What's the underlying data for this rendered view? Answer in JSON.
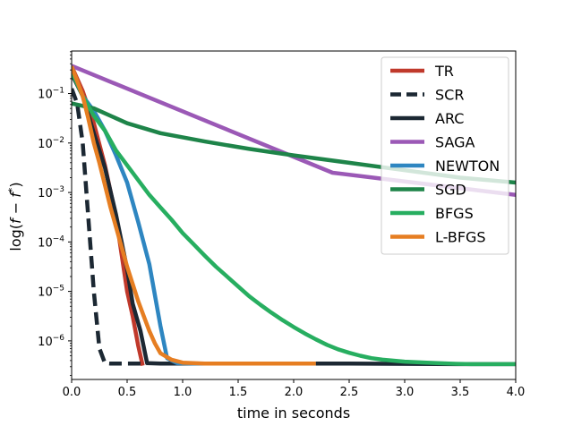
{
  "chart_data": {
    "type": "line",
    "title": "",
    "xlabel": "time in seconds",
    "ylabel_parts": [
      "log(",
      "f",
      " − ",
      "f",
      "*",
      ")"
    ],
    "xlim": [
      0,
      4
    ],
    "ylim_log10": [
      -6.78,
      -0.14
    ],
    "x_ticks": [
      0,
      0.5,
      1,
      1.5,
      2,
      2.5,
      3,
      3.5,
      4
    ],
    "x_tick_labels": [
      "0.0",
      "0.5",
      "1.0",
      "1.5",
      "2.0",
      "2.5",
      "3.0",
      "3.5",
      "4.0"
    ],
    "y_ticks_log10": [
      -6,
      -5,
      -4,
      -3,
      -2,
      -1
    ],
    "y_tick_base": "10",
    "y_tick_exponents": [
      "−6",
      "−5",
      "−4",
      "−3",
      "−2",
      "−1"
    ],
    "grid": false,
    "legend_position": "top-right",
    "series": [
      {
        "name": "TR",
        "color": "#c0392b",
        "dash": "solid",
        "points": [
          [
            0.0,
            -0.45
          ],
          [
            0.1,
            -0.95
          ],
          [
            0.2,
            -1.6
          ],
          [
            0.3,
            -2.45
          ],
          [
            0.4,
            -3.5
          ],
          [
            0.45,
            -4.25
          ],
          [
            0.5,
            -5.0
          ],
          [
            0.55,
            -5.5
          ],
          [
            0.6,
            -6.1
          ],
          [
            0.64,
            -6.5
          ]
        ]
      },
      {
        "name": "SCR",
        "color": "#1c2833",
        "dash": "dashed",
        "points": [
          [
            0.0,
            -0.9
          ],
          [
            0.05,
            -1.2
          ],
          [
            0.1,
            -2.0
          ],
          [
            0.15,
            -3.5
          ],
          [
            0.2,
            -5.0
          ],
          [
            0.25,
            -6.15
          ],
          [
            0.3,
            -6.45
          ],
          [
            0.35,
            -6.46
          ],
          [
            0.5,
            -6.46
          ],
          [
            0.65,
            -6.46
          ]
        ]
      },
      {
        "name": "ARC",
        "color": "#1c2833",
        "dash": "solid",
        "points": [
          [
            0.0,
            -0.6
          ],
          [
            0.1,
            -1.05
          ],
          [
            0.2,
            -1.8
          ],
          [
            0.3,
            -2.5
          ],
          [
            0.4,
            -3.45
          ],
          [
            0.5,
            -4.55
          ],
          [
            0.55,
            -5.25
          ],
          [
            0.62,
            -5.8
          ],
          [
            0.68,
            -6.45
          ],
          [
            0.8,
            -6.46
          ],
          [
            1.5,
            -6.46
          ],
          [
            2.5,
            -6.46
          ],
          [
            3.5,
            -6.47
          ],
          [
            4.0,
            -6.47
          ]
        ]
      },
      {
        "name": "SAGA",
        "color": "#9b59b6",
        "dash": "solid",
        "points": [
          [
            0.0,
            -0.44
          ],
          [
            2.35,
            -2.6
          ],
          [
            4.0,
            -3.05
          ]
        ]
      },
      {
        "name": "NEWTON",
        "color": "#2e86c1",
        "dash": "solid",
        "points": [
          [
            0.0,
            -0.5
          ],
          [
            0.1,
            -1.05
          ],
          [
            0.2,
            -1.35
          ],
          [
            0.3,
            -1.75
          ],
          [
            0.4,
            -2.25
          ],
          [
            0.5,
            -2.8
          ],
          [
            0.6,
            -3.6
          ],
          [
            0.7,
            -4.45
          ],
          [
            0.8,
            -5.7
          ],
          [
            0.86,
            -6.35
          ],
          [
            0.95,
            -6.45
          ],
          [
            1.1,
            -6.46
          ],
          [
            1.6,
            -6.46
          ],
          [
            2.2,
            -6.46
          ]
        ]
      },
      {
        "name": "SGD",
        "color": "#1e8449",
        "dash": "solid",
        "points": [
          [
            0.0,
            -1.2
          ],
          [
            0.2,
            -1.3
          ],
          [
            0.5,
            -1.6
          ],
          [
            0.8,
            -1.8
          ],
          [
            1.2,
            -1.97
          ],
          [
            1.6,
            -2.12
          ],
          [
            2.0,
            -2.25
          ],
          [
            2.5,
            -2.4
          ],
          [
            3.0,
            -2.55
          ],
          [
            3.5,
            -2.7
          ],
          [
            4.0,
            -2.8
          ]
        ]
      },
      {
        "name": "BFGS",
        "color": "#27ae60",
        "dash": "solid",
        "points": [
          [
            0.0,
            -0.55
          ],
          [
            0.1,
            -1.05
          ],
          [
            0.2,
            -1.45
          ],
          [
            0.3,
            -1.75
          ],
          [
            0.4,
            -2.15
          ],
          [
            0.5,
            -2.45
          ],
          [
            0.6,
            -2.75
          ],
          [
            0.7,
            -3.05
          ],
          [
            0.8,
            -3.3
          ],
          [
            0.9,
            -3.55
          ],
          [
            1.0,
            -3.82
          ],
          [
            1.1,
            -4.05
          ],
          [
            1.2,
            -4.28
          ],
          [
            1.3,
            -4.5
          ],
          [
            1.4,
            -4.7
          ],
          [
            1.5,
            -4.9
          ],
          [
            1.6,
            -5.1
          ],
          [
            1.7,
            -5.27
          ],
          [
            1.8,
            -5.43
          ],
          [
            1.9,
            -5.58
          ],
          [
            2.0,
            -5.72
          ],
          [
            2.1,
            -5.85
          ],
          [
            2.2,
            -5.97
          ],
          [
            2.3,
            -6.08
          ],
          [
            2.4,
            -6.17
          ],
          [
            2.5,
            -6.24
          ],
          [
            2.6,
            -6.3
          ],
          [
            2.7,
            -6.35
          ],
          [
            2.8,
            -6.38
          ],
          [
            2.9,
            -6.4
          ],
          [
            3.0,
            -6.42
          ],
          [
            3.2,
            -6.44
          ],
          [
            3.4,
            -6.46
          ],
          [
            3.6,
            -6.47
          ],
          [
            3.8,
            -6.47
          ],
          [
            4.0,
            -6.47
          ]
        ]
      },
      {
        "name": "L-BFGS",
        "color": "#e67e22",
        "dash": "solid",
        "points": [
          [
            0.0,
            -0.45
          ],
          [
            0.05,
            -0.75
          ],
          [
            0.1,
            -1.05
          ],
          [
            0.15,
            -1.5
          ],
          [
            0.2,
            -2.0
          ],
          [
            0.25,
            -2.4
          ],
          [
            0.3,
            -2.85
          ],
          [
            0.35,
            -3.3
          ],
          [
            0.4,
            -3.7
          ],
          [
            0.45,
            -4.1
          ],
          [
            0.5,
            -4.5
          ],
          [
            0.55,
            -4.85
          ],
          [
            0.6,
            -5.2
          ],
          [
            0.65,
            -5.5
          ],
          [
            0.7,
            -5.8
          ],
          [
            0.75,
            -6.05
          ],
          [
            0.8,
            -6.25
          ],
          [
            0.9,
            -6.38
          ],
          [
            1.0,
            -6.44
          ],
          [
            1.2,
            -6.46
          ],
          [
            1.6,
            -6.46
          ],
          [
            2.2,
            -6.46
          ]
        ]
      }
    ]
  }
}
